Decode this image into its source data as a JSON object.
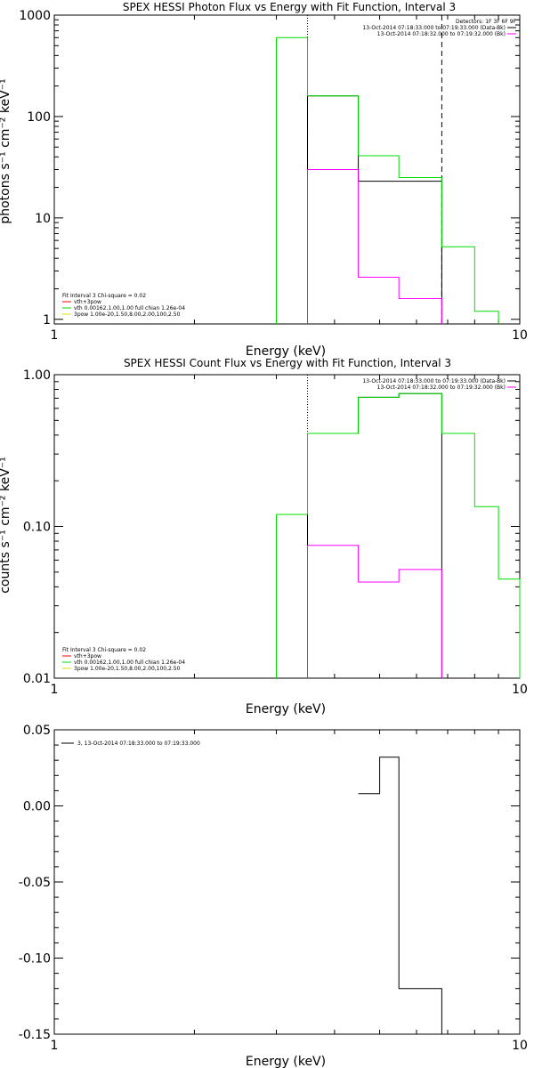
{
  "chart_data": [
    {
      "id": "photon",
      "type": "line",
      "title": "SPEX HESSI Photon Flux vs Energy with Fit Function, Interval 3",
      "xlabel": "Energy (keV)",
      "ylabel": "photons s⁻¹ cm⁻² keV⁻¹",
      "xscale": "log",
      "yscale": "log",
      "xlim": [
        1,
        10
      ],
      "ylim": [
        0.9,
        1000
      ],
      "x_ticks": [
        1,
        10
      ],
      "x_tick_labels": [
        "1",
        "10"
      ],
      "y_ticks": [
        1,
        10,
        100,
        1000
      ],
      "y_tick_labels": [
        "1",
        "10",
        "100",
        "1000"
      ],
      "vlines": [
        {
          "x": 3.5,
          "style": "dotted",
          "color": "#000000"
        },
        {
          "x": 6.8,
          "style": "dashed",
          "color": "#000000"
        }
      ],
      "legend_top_right": [
        {
          "text": "Detectors: 1F 3F 6F 9F",
          "color": null
        },
        {
          "text": "13-Oct-2014 07:18:33.000 to 07:19:33.000 (Data-Bk)",
          "color": "#000000"
        },
        {
          "text": "13-Oct-2014 07:18:32.000 to 07:19:32.000 (Bk)",
          "color": "#ff00ff"
        }
      ],
      "legend_bottom_left": [
        {
          "text": "Fit Interval 3   Chi-square = 0.02",
          "color": null
        },
        {
          "text": "vth+3pow",
          "color": "#ff0000"
        },
        {
          "text": "vth 0.00162,1.00,1.00  full chian 1.26e-04",
          "color": "#00dd00"
        },
        {
          "text": "3pow 1.00e-20,1.50,8.00,2.00,100,2.50",
          "color": "#dddd00"
        }
      ],
      "series": [
        {
          "color": "#000000",
          "edges": [
            3.5,
            4.5,
            5.5,
            6.8
          ],
          "values": [
            160,
            23,
            23
          ]
        },
        {
          "color": "#00dd00",
          "edges": [
            3,
            3.5,
            4.5,
            5.5,
            6.8,
            8,
            9
          ],
          "values": [
            600,
            160,
            41,
            25,
            5.2,
            1.2
          ]
        },
        {
          "color": "#ff00ff",
          "edges": [
            3.5,
            4.5,
            5.5,
            6.8
          ],
          "values": [
            30,
            2.6,
            1.6
          ]
        }
      ]
    },
    {
      "id": "count",
      "type": "line",
      "title": "SPEX HESSI Count Flux vs Energy with Fit Function, Interval 3",
      "xlabel": "Energy (keV)",
      "ylabel": "counts s⁻¹ cm⁻² keV⁻¹",
      "xscale": "log",
      "yscale": "log",
      "xlim": [
        1,
        10
      ],
      "ylim": [
        0.01,
        1.0
      ],
      "x_ticks": [
        1,
        10
      ],
      "x_tick_labels": [
        "1",
        "10"
      ],
      "y_ticks": [
        0.01,
        0.1,
        1.0
      ],
      "y_tick_labels": [
        "0.01",
        "0.10",
        "1.00"
      ],
      "vlines": [
        {
          "x": 3.5,
          "style": "dotted",
          "color": "#000000"
        }
      ],
      "legend_top_right": [
        {
          "text": "13-Oct-2014 07:18:33.000 to 07:19:33.000 (Data-Bk)",
          "color": "#000000"
        },
        {
          "text": "13-Oct-2014 07:18:32.000 to 07:19:32.000 (Bk)",
          "color": "#ff00ff"
        }
      ],
      "legend_bottom_left": [
        {
          "text": "Fit Interval 3   Chi-square = 0.02",
          "color": null
        },
        {
          "text": "vth+3pow",
          "color": "#ff0000"
        },
        {
          "text": "vth 0.00162,1.00,1.00  full chian 1.26e-04",
          "color": "#00dd00"
        },
        {
          "text": "3pow 1.00e-20,1.50,8.00,2.00,100,2.50",
          "color": "#dddd00"
        }
      ],
      "series": [
        {
          "color": "#000000",
          "edges": [
            3.5,
            4.5,
            5.5,
            6.8
          ],
          "values": [
            0.41,
            0.71,
            0.75
          ]
        },
        {
          "color": "#00dd00",
          "edges": [
            3,
            3.5,
            4.5,
            5.5,
            6.8,
            8,
            9,
            10
          ],
          "values": [
            0.12,
            0.41,
            0.71,
            0.75,
            0.41,
            0.135,
            0.045
          ]
        },
        {
          "color": "#ff00ff",
          "edges": [
            3.5,
            4.5,
            5.5,
            6.8
          ],
          "values": [
            0.075,
            0.043,
            0.052
          ]
        }
      ]
    },
    {
      "id": "residual",
      "type": "line",
      "title": "",
      "xlabel": "Energy (keV)",
      "ylabel": "",
      "xscale": "log",
      "yscale": "linear",
      "xlim": [
        1,
        10
      ],
      "ylim": [
        -0.15,
        0.05
      ],
      "x_ticks": [
        1,
        10
      ],
      "x_tick_labels": [
        "1",
        "10"
      ],
      "y_ticks": [
        0.05,
        0.0,
        -0.05,
        -0.1,
        -0.15
      ],
      "y_tick_labels": [
        "0.05",
        "0.00",
        "-0.05",
        "-0.10",
        "-0.15"
      ],
      "vlines": [],
      "legend_top_left": [
        {
          "text": "3, 13-Oct-2014 07:18:33.000 to 07:19:33.000",
          "color": "#000000"
        }
      ],
      "series": [
        {
          "color": "#000000",
          "edges": [
            4.5,
            5.0,
            5.5,
            6.8
          ],
          "values": [
            0.008,
            0.032,
            -0.12
          ]
        }
      ]
    }
  ]
}
